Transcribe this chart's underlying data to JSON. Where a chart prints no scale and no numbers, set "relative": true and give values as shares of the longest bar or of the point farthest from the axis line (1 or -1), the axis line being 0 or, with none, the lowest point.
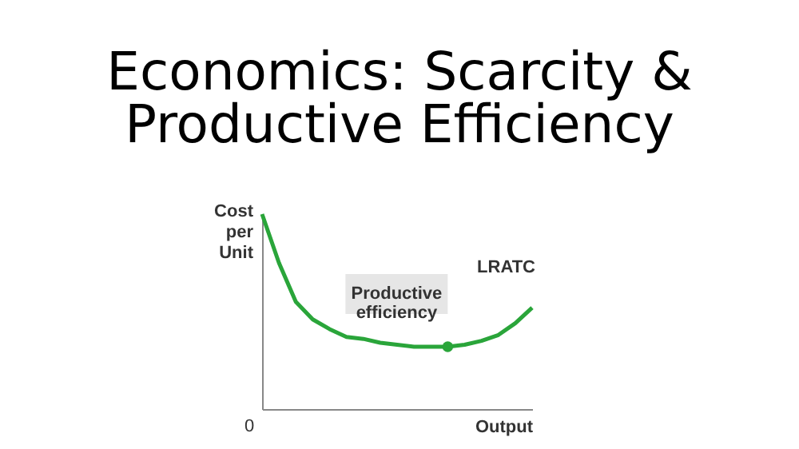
{
  "chart_data": {
    "type": "line",
    "title": "Economics: Scarcity & Productive Efficiency",
    "ylabel": "Cost per Unit",
    "xlabel": "Output",
    "relative": true,
    "marker": "none",
    "categories": [
      null,
      null,
      null,
      null,
      null,
      null,
      null,
      null,
      null,
      null,
      null,
      null,
      null,
      null,
      null,
      null,
      null
    ],
    "series": [
      {
        "name": "LRATC",
        "color": "#2aa53a",
        "values": [
          1,
          0.75,
          0.55,
          0.46,
          0.41,
          0.37,
          0.36,
          0.34,
          0.33,
          0.32,
          0.32,
          0.32,
          0.33,
          0.35,
          0.38,
          0.44,
          0.52
        ]
      }
    ],
    "annotations": [
      "0",
      "Productive efficiency"
    ]
  }
}
